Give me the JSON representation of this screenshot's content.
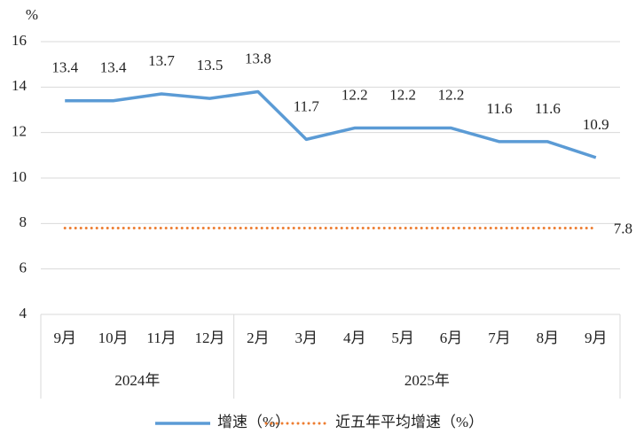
{
  "chart_data": {
    "type": "line",
    "y_axis_label": "%",
    "categories": [
      "9月",
      "10月",
      "11月",
      "12月",
      "2月",
      "3月",
      "4月",
      "5月",
      "6月",
      "7月",
      "8月",
      "9月"
    ],
    "groups": [
      {
        "label": "2024年",
        "count": 4
      },
      {
        "label": "2025年",
        "count": 8
      }
    ],
    "series": [
      {
        "name": "增速（%）",
        "color": "#5b9bd5",
        "style": "solid",
        "data_labels": "all",
        "values": [
          13.4,
          13.4,
          13.7,
          13.5,
          13.8,
          11.7,
          12.2,
          12.2,
          12.2,
          11.6,
          11.6,
          10.9
        ]
      },
      {
        "name": "近五年平均增速（%）",
        "color": "#ed7d31",
        "style": "dotted",
        "data_labels": "last",
        "values": [
          7.8,
          7.8,
          7.8,
          7.8,
          7.8,
          7.8,
          7.8,
          7.8,
          7.8,
          7.8,
          7.8,
          7.8
        ]
      }
    ],
    "ylim": [
      4,
      16
    ],
    "yticks": [
      4,
      6,
      8,
      10,
      12,
      14,
      16
    ],
    "grid": true,
    "legend": "bottom"
  }
}
